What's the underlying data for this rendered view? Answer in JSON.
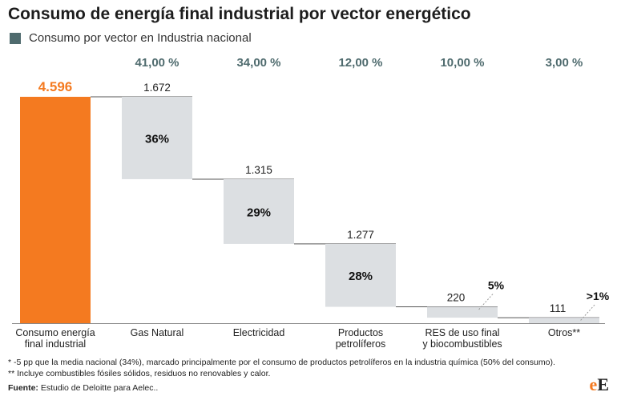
{
  "title": "Consumo de energía final industrial por vector energético",
  "legend": {
    "label": "Consumo por vector en Industria nacional",
    "color": "#4f6b6e"
  },
  "colors": {
    "total": "#f47a20",
    "step": "#dcdfe2",
    "connector": "#555555",
    "national": "#4f6b6e"
  },
  "chart_data": {
    "type": "bar",
    "subtype": "waterfall",
    "total": {
      "label_lines": [
        "Consumo energía",
        "final industrial"
      ],
      "value": 4596,
      "value_label": "4.596"
    },
    "categories": [
      {
        "label_lines": [
          "Gas Natural"
        ],
        "value": 1672,
        "value_label": "1.672",
        "share_label": "36%",
        "national_label": "41,00 %"
      },
      {
        "label_lines": [
          "Electricidad"
        ],
        "value": 1315,
        "value_label": "1.315",
        "share_label": "29%",
        "national_label": "34,00 %"
      },
      {
        "label_lines": [
          "Productos",
          "petrolíferos"
        ],
        "value": 1277,
        "value_label": "1.277",
        "share_label": "28%",
        "national_label": "12,00 %"
      },
      {
        "label_lines": [
          "RES de uso final",
          "y biocombustibles"
        ],
        "value": 220,
        "value_label": "220",
        "share_label": "5%",
        "national_label": "10,00 %"
      },
      {
        "label_lines": [
          "Otros**"
        ],
        "value": 111,
        "value_label": "111",
        "share_label": ">1%",
        "national_label": "3,00 %"
      }
    ],
    "ylim": [
      0,
      4596
    ]
  },
  "footnotes": [
    "* -5 pp que la media nacional (34%), marcado principalmente por el consumo de productos petrolíferos en la industria química (50% del consumo).",
    "** Incluye combustibles fósiles sólidos, residuos no renovables y calor."
  ],
  "source": {
    "label": "Fuente:",
    "text": " Estudio de Deloitte para Aelec.."
  },
  "logo": {
    "first": "e",
    "second": "E"
  }
}
